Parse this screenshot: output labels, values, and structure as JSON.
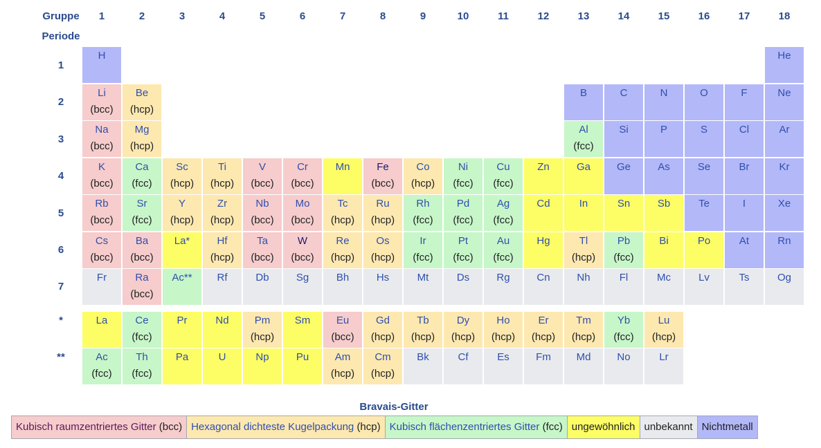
{
  "header": {
    "group_label": "Gruppe",
    "period_label": "Periode",
    "groups": [
      "1",
      "2",
      "3",
      "4",
      "5",
      "6",
      "7",
      "8",
      "9",
      "10",
      "11",
      "12",
      "13",
      "14",
      "15",
      "16",
      "17",
      "18"
    ]
  },
  "periods": [
    "1",
    "2",
    "3",
    "4",
    "5",
    "6",
    "7",
    "*",
    "**"
  ],
  "colors": {
    "bcc": "#f6cccc",
    "hcp": "#fde8b0",
    "fcc": "#c7f6c8",
    "unusual": "#fdfd66",
    "unknown": "#e8eaed",
    "nonmetal": "#b3b8f8"
  },
  "elements": [
    {
      "s": "H",
      "g": 1,
      "p": 1,
      "c": "nonmetal",
      "l": ""
    },
    {
      "s": "He",
      "g": 18,
      "p": 1,
      "c": "nonmetal",
      "l": ""
    },
    {
      "s": "Li",
      "g": 1,
      "p": 2,
      "c": "bcc",
      "l": "(bcc)"
    },
    {
      "s": "Be",
      "g": 2,
      "p": 2,
      "c": "hcp",
      "l": "(hcp)"
    },
    {
      "s": "B",
      "g": 13,
      "p": 2,
      "c": "nonmetal",
      "l": ""
    },
    {
      "s": "C",
      "g": 14,
      "p": 2,
      "c": "nonmetal",
      "l": ""
    },
    {
      "s": "N",
      "g": 15,
      "p": 2,
      "c": "nonmetal",
      "l": ""
    },
    {
      "s": "O",
      "g": 16,
      "p": 2,
      "c": "nonmetal",
      "l": ""
    },
    {
      "s": "F",
      "g": 17,
      "p": 2,
      "c": "nonmetal",
      "l": ""
    },
    {
      "s": "Ne",
      "g": 18,
      "p": 2,
      "c": "nonmetal",
      "l": ""
    },
    {
      "s": "Na",
      "g": 1,
      "p": 3,
      "c": "bcc",
      "l": "(bcc)"
    },
    {
      "s": "Mg",
      "g": 2,
      "p": 3,
      "c": "hcp",
      "l": "(hcp)"
    },
    {
      "s": "Al",
      "g": 13,
      "p": 3,
      "c": "fcc",
      "l": "(fcc)"
    },
    {
      "s": "Si",
      "g": 14,
      "p": 3,
      "c": "nonmetal",
      "l": ""
    },
    {
      "s": "P",
      "g": 15,
      "p": 3,
      "c": "nonmetal",
      "l": ""
    },
    {
      "s": "S",
      "g": 16,
      "p": 3,
      "c": "nonmetal",
      "l": ""
    },
    {
      "s": "Cl",
      "g": 17,
      "p": 3,
      "c": "nonmetal",
      "l": ""
    },
    {
      "s": "Ar",
      "g": 18,
      "p": 3,
      "c": "nonmetal",
      "l": ""
    },
    {
      "s": "K",
      "g": 1,
      "p": 4,
      "c": "bcc",
      "l": "(bcc)"
    },
    {
      "s": "Ca",
      "g": 2,
      "p": 4,
      "c": "fcc",
      "l": "(fcc)"
    },
    {
      "s": "Sc",
      "g": 3,
      "p": 4,
      "c": "hcp",
      "l": "(hcp)"
    },
    {
      "s": "Ti",
      "g": 4,
      "p": 4,
      "c": "hcp",
      "l": "(hcp)"
    },
    {
      "s": "V",
      "g": 5,
      "p": 4,
      "c": "bcc",
      "l": "(bcc)"
    },
    {
      "s": "Cr",
      "g": 6,
      "p": 4,
      "c": "bcc",
      "l": "(bcc)"
    },
    {
      "s": "Mn",
      "g": 7,
      "p": 4,
      "c": "unusual",
      "l": ""
    },
    {
      "s": "Fe",
      "g": 8,
      "p": 4,
      "c": "bcc",
      "l": "(bcc)",
      "dark": true
    },
    {
      "s": "Co",
      "g": 9,
      "p": 4,
      "c": "hcp",
      "l": "(hcp)"
    },
    {
      "s": "Ni",
      "g": 10,
      "p": 4,
      "c": "fcc",
      "l": "(fcc)"
    },
    {
      "s": "Cu",
      "g": 11,
      "p": 4,
      "c": "fcc",
      "l": "(fcc)"
    },
    {
      "s": "Zn",
      "g": 12,
      "p": 4,
      "c": "unusual",
      "l": ""
    },
    {
      "s": "Ga",
      "g": 13,
      "p": 4,
      "c": "unusual",
      "l": ""
    },
    {
      "s": "Ge",
      "g": 14,
      "p": 4,
      "c": "nonmetal",
      "l": ""
    },
    {
      "s": "As",
      "g": 15,
      "p": 4,
      "c": "nonmetal",
      "l": ""
    },
    {
      "s": "Se",
      "g": 16,
      "p": 4,
      "c": "nonmetal",
      "l": ""
    },
    {
      "s": "Br",
      "g": 17,
      "p": 4,
      "c": "nonmetal",
      "l": ""
    },
    {
      "s": "Kr",
      "g": 18,
      "p": 4,
      "c": "nonmetal",
      "l": ""
    },
    {
      "s": "Rb",
      "g": 1,
      "p": 5,
      "c": "bcc",
      "l": "(bcc)"
    },
    {
      "s": "Sr",
      "g": 2,
      "p": 5,
      "c": "fcc",
      "l": "(fcc)"
    },
    {
      "s": "Y",
      "g": 3,
      "p": 5,
      "c": "hcp",
      "l": "(hcp)"
    },
    {
      "s": "Zr",
      "g": 4,
      "p": 5,
      "c": "hcp",
      "l": "(hcp)"
    },
    {
      "s": "Nb",
      "g": 5,
      "p": 5,
      "c": "bcc",
      "l": "(bcc)"
    },
    {
      "s": "Mo",
      "g": 6,
      "p": 5,
      "c": "bcc",
      "l": "(bcc)"
    },
    {
      "s": "Tc",
      "g": 7,
      "p": 5,
      "c": "hcp",
      "l": "(hcp)"
    },
    {
      "s": "Ru",
      "g": 8,
      "p": 5,
      "c": "hcp",
      "l": "(hcp)"
    },
    {
      "s": "Rh",
      "g": 9,
      "p": 5,
      "c": "fcc",
      "l": "(fcc)"
    },
    {
      "s": "Pd",
      "g": 10,
      "p": 5,
      "c": "fcc",
      "l": "(fcc)"
    },
    {
      "s": "Ag",
      "g": 11,
      "p": 5,
      "c": "fcc",
      "l": "(fcc)"
    },
    {
      "s": "Cd",
      "g": 12,
      "p": 5,
      "c": "unusual",
      "l": ""
    },
    {
      "s": "In",
      "g": 13,
      "p": 5,
      "c": "unusual",
      "l": ""
    },
    {
      "s": "Sn",
      "g": 14,
      "p": 5,
      "c": "unusual",
      "l": ""
    },
    {
      "s": "Sb",
      "g": 15,
      "p": 5,
      "c": "unusual",
      "l": ""
    },
    {
      "s": "Te",
      "g": 16,
      "p": 5,
      "c": "nonmetal",
      "l": ""
    },
    {
      "s": "I",
      "g": 17,
      "p": 5,
      "c": "nonmetal",
      "l": ""
    },
    {
      "s": "Xe",
      "g": 18,
      "p": 5,
      "c": "nonmetal",
      "l": ""
    },
    {
      "s": "Cs",
      "g": 1,
      "p": 6,
      "c": "bcc",
      "l": "(bcc)"
    },
    {
      "s": "Ba",
      "g": 2,
      "p": 6,
      "c": "bcc",
      "l": "(bcc)"
    },
    {
      "s": "La*",
      "g": 3,
      "p": 6,
      "c": "unusual",
      "l": ""
    },
    {
      "s": "Hf",
      "g": 4,
      "p": 6,
      "c": "hcp",
      "l": "(hcp)"
    },
    {
      "s": "Ta",
      "g": 5,
      "p": 6,
      "c": "bcc",
      "l": "(bcc)"
    },
    {
      "s": "W",
      "g": 6,
      "p": 6,
      "c": "bcc",
      "l": "(bcc)",
      "dark": true
    },
    {
      "s": "Re",
      "g": 7,
      "p": 6,
      "c": "hcp",
      "l": "(hcp)"
    },
    {
      "s": "Os",
      "g": 8,
      "p": 6,
      "c": "hcp",
      "l": "(hcp)"
    },
    {
      "s": "Ir",
      "g": 9,
      "p": 6,
      "c": "fcc",
      "l": "(fcc)"
    },
    {
      "s": "Pt",
      "g": 10,
      "p": 6,
      "c": "fcc",
      "l": "(fcc)"
    },
    {
      "s": "Au",
      "g": 11,
      "p": 6,
      "c": "fcc",
      "l": "(fcc)"
    },
    {
      "s": "Hg",
      "g": 12,
      "p": 6,
      "c": "unusual",
      "l": ""
    },
    {
      "s": "Tl",
      "g": 13,
      "p": 6,
      "c": "hcp",
      "l": "(hcp)"
    },
    {
      "s": "Pb",
      "g": 14,
      "p": 6,
      "c": "fcc",
      "l": "(fcc)"
    },
    {
      "s": "Bi",
      "g": 15,
      "p": 6,
      "c": "unusual",
      "l": ""
    },
    {
      "s": "Po",
      "g": 16,
      "p": 6,
      "c": "unusual",
      "l": ""
    },
    {
      "s": "At",
      "g": 17,
      "p": 6,
      "c": "nonmetal",
      "l": ""
    },
    {
      "s": "Rn",
      "g": 18,
      "p": 6,
      "c": "nonmetal",
      "l": ""
    },
    {
      "s": "Fr",
      "g": 1,
      "p": 7,
      "c": "unknown",
      "l": ""
    },
    {
      "s": "Ra",
      "g": 2,
      "p": 7,
      "c": "bcc",
      "l": "(bcc)"
    },
    {
      "s": "Ac**",
      "g": 3,
      "p": 7,
      "c": "fcc",
      "l": ""
    },
    {
      "s": "Rf",
      "g": 4,
      "p": 7,
      "c": "unknown",
      "l": ""
    },
    {
      "s": "Db",
      "g": 5,
      "p": 7,
      "c": "unknown",
      "l": ""
    },
    {
      "s": "Sg",
      "g": 6,
      "p": 7,
      "c": "unknown",
      "l": ""
    },
    {
      "s": "Bh",
      "g": 7,
      "p": 7,
      "c": "unknown",
      "l": ""
    },
    {
      "s": "Hs",
      "g": 8,
      "p": 7,
      "c": "unknown",
      "l": ""
    },
    {
      "s": "Mt",
      "g": 9,
      "p": 7,
      "c": "unknown",
      "l": ""
    },
    {
      "s": "Ds",
      "g": 10,
      "p": 7,
      "c": "unknown",
      "l": ""
    },
    {
      "s": "Rg",
      "g": 11,
      "p": 7,
      "c": "unknown",
      "l": ""
    },
    {
      "s": "Cn",
      "g": 12,
      "p": 7,
      "c": "unknown",
      "l": ""
    },
    {
      "s": "Nh",
      "g": 13,
      "p": 7,
      "c": "unknown",
      "l": ""
    },
    {
      "s": "Fl",
      "g": 14,
      "p": 7,
      "c": "unknown",
      "l": ""
    },
    {
      "s": "Mc",
      "g": 15,
      "p": 7,
      "c": "unknown",
      "l": ""
    },
    {
      "s": "Lv",
      "g": 16,
      "p": 7,
      "c": "unknown",
      "l": ""
    },
    {
      "s": "Ts",
      "g": 17,
      "p": 7,
      "c": "unknown",
      "l": ""
    },
    {
      "s": "Og",
      "g": 18,
      "p": 7,
      "c": "unknown",
      "l": ""
    },
    {
      "s": "La",
      "g": 1,
      "p": 8,
      "c": "unusual",
      "l": ""
    },
    {
      "s": "Ce",
      "g": 2,
      "p": 8,
      "c": "fcc",
      "l": "(fcc)"
    },
    {
      "s": "Pr",
      "g": 3,
      "p": 8,
      "c": "unusual",
      "l": ""
    },
    {
      "s": "Nd",
      "g": 4,
      "p": 8,
      "c": "unusual",
      "l": ""
    },
    {
      "s": "Pm",
      "g": 5,
      "p": 8,
      "c": "hcp",
      "l": "(hcp)"
    },
    {
      "s": "Sm",
      "g": 6,
      "p": 8,
      "c": "unusual",
      "l": ""
    },
    {
      "s": "Eu",
      "g": 7,
      "p": 8,
      "c": "bcc",
      "l": "(bcc)"
    },
    {
      "s": "Gd",
      "g": 8,
      "p": 8,
      "c": "hcp",
      "l": "(hcp)"
    },
    {
      "s": "Tb",
      "g": 9,
      "p": 8,
      "c": "hcp",
      "l": "(hcp)"
    },
    {
      "s": "Dy",
      "g": 10,
      "p": 8,
      "c": "hcp",
      "l": "(hcp)"
    },
    {
      "s": "Ho",
      "g": 11,
      "p": 8,
      "c": "hcp",
      "l": "(hcp)"
    },
    {
      "s": "Er",
      "g": 12,
      "p": 8,
      "c": "hcp",
      "l": "(hcp)"
    },
    {
      "s": "Tm",
      "g": 13,
      "p": 8,
      "c": "hcp",
      "l": "(hcp)"
    },
    {
      "s": "Yb",
      "g": 14,
      "p": 8,
      "c": "fcc",
      "l": "(fcc)"
    },
    {
      "s": "Lu",
      "g": 15,
      "p": 8,
      "c": "hcp",
      "l": "(hcp)"
    },
    {
      "s": "Ac",
      "g": 1,
      "p": 9,
      "c": "fcc",
      "l": "(fcc)"
    },
    {
      "s": "Th",
      "g": 2,
      "p": 9,
      "c": "fcc",
      "l": "(fcc)"
    },
    {
      "s": "Pa",
      "g": 3,
      "p": 9,
      "c": "unusual",
      "l": ""
    },
    {
      "s": "U",
      "g": 4,
      "p": 9,
      "c": "unusual",
      "l": ""
    },
    {
      "s": "Np",
      "g": 5,
      "p": 9,
      "c": "unusual",
      "l": ""
    },
    {
      "s": "Pu",
      "g": 6,
      "p": 9,
      "c": "unusual",
      "l": ""
    },
    {
      "s": "Am",
      "g": 7,
      "p": 9,
      "c": "hcp",
      "l": "(hcp)"
    },
    {
      "s": "Cm",
      "g": 8,
      "p": 9,
      "c": "hcp",
      "l": "(hcp)"
    },
    {
      "s": "Bk",
      "g": 9,
      "p": 9,
      "c": "unknown",
      "l": ""
    },
    {
      "s": "Cf",
      "g": 10,
      "p": 9,
      "c": "unknown",
      "l": ""
    },
    {
      "s": "Es",
      "g": 11,
      "p": 9,
      "c": "unknown",
      "l": ""
    },
    {
      "s": "Fm",
      "g": 12,
      "p": 9,
      "c": "unknown",
      "l": ""
    },
    {
      "s": "Md",
      "g": 13,
      "p": 9,
      "c": "unknown",
      "l": ""
    },
    {
      "s": "No",
      "g": 14,
      "p": 9,
      "c": "unknown",
      "l": ""
    },
    {
      "s": "Lr",
      "g": 15,
      "p": 9,
      "c": "unknown",
      "l": ""
    }
  ],
  "legend": {
    "title": "Bravais-Gitter",
    "bcc_label": "Kubisch raumzentriertes Gitter",
    "bcc_abbr": "(bcc)",
    "hcp_label": "Hexagonal dichteste Kugelpackung",
    "hcp_abbr": "(hcp)",
    "fcc_label": "Kubisch flächenzentriertes Gitter",
    "fcc_abbr": "(fcc)",
    "unusual_label": "ungewöhnlich",
    "unknown_label": "unbekannt",
    "nonmetal_label": "Nichtmetall"
  }
}
